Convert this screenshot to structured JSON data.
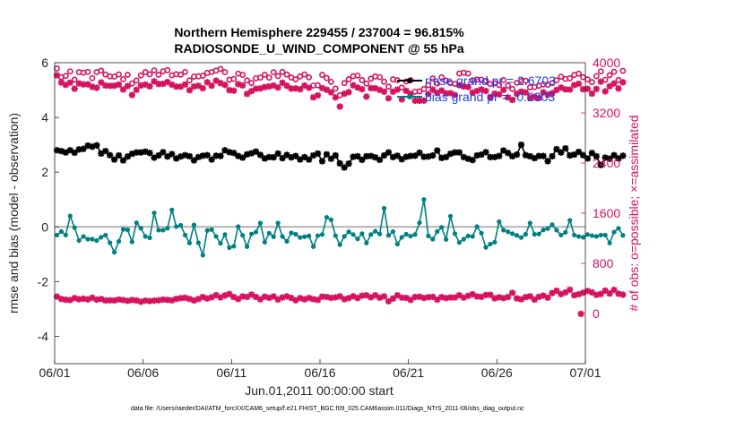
{
  "chart_data": {
    "type": "line",
    "title_line1": "Northern Hemisphere 229455 / 237004 = 96.815%",
    "title_line2": "RADIOSONDE_U_WIND_COMPONENT @ 55 hPa",
    "xlabel": "Jun.01,2011 00:00:00 start",
    "ylabel_left": "rmse and bias (model - observation)",
    "ylabel_right": "# of obs: o=possible; ×=assimilated",
    "x_ticklabels": [
      "06/01",
      "06/06",
      "06/11",
      "06/16",
      "06/21",
      "06/26",
      "07/01"
    ],
    "x_tick_days": [
      0,
      5,
      10,
      15,
      20,
      25,
      30
    ],
    "xlim_days": [
      0,
      30
    ],
    "ylim_left": [
      -5,
      6
    ],
    "yticks_left": [
      "-4",
      "-2",
      "0",
      "2",
      "4",
      "6"
    ],
    "ylim_right": [
      -800,
      4000
    ],
    "yticks_right": [
      "0",
      "800",
      "1600",
      "2400",
      "3200",
      "4000"
    ],
    "zero_line": true,
    "legend_placement": "top-right",
    "footnote": "data file: /Users/raeder/DAI/ATM_forcXX/CAM6_setup/f.e21.FHIST_BGC.f09_025.CAM6assim.011/Diags_NTrS_2011-06/obs_diag_output.nc",
    "colors": {
      "rmse": "#000000",
      "bias": "#008080",
      "counts": "#d6135e",
      "zero": "#b3b3b3",
      "legend_text": "#1a3df0"
    },
    "series": [
      {
        "name": "rmse grand pr = 2.6703",
        "axis": "left",
        "marker": "star",
        "values": [
          2.8,
          2.77,
          2.72,
          2.8,
          2.71,
          2.83,
          2.85,
          2.97,
          2.93,
          2.98,
          2.68,
          2.77,
          2.62,
          2.46,
          2.61,
          2.43,
          2.57,
          2.67,
          2.72,
          2.72,
          2.75,
          2.7,
          2.53,
          2.61,
          2.73,
          2.57,
          2.66,
          2.5,
          2.57,
          2.62,
          2.58,
          2.43,
          2.55,
          2.6,
          2.62,
          2.46,
          2.6,
          2.59,
          2.8,
          2.73,
          2.7,
          2.59,
          2.53,
          2.65,
          2.69,
          2.75,
          2.63,
          2.5,
          2.55,
          2.54,
          2.68,
          2.51,
          2.63,
          2.54,
          2.59,
          2.46,
          2.55,
          2.46,
          2.61,
          2.68,
          2.4,
          2.65,
          2.49,
          2.61,
          2.32,
          2.17,
          2.31,
          2.56,
          2.58,
          2.45,
          2.58,
          2.59,
          2.54,
          2.45,
          2.61,
          2.72,
          2.55,
          2.6,
          2.47,
          2.56,
          2.59,
          2.6,
          2.71,
          2.56,
          2.57,
          2.61,
          2.79,
          2.52,
          2.55,
          2.67,
          2.72,
          2.72,
          2.55,
          2.49,
          2.44,
          2.61,
          2.64,
          2.73,
          2.55,
          2.55,
          2.59,
          2.79,
          2.7,
          2.58,
          2.64,
          3.0,
          2.62,
          2.58,
          2.51,
          2.59,
          2.59,
          2.4,
          2.58,
          2.84,
          2.72,
          2.87,
          2.61,
          2.64,
          2.74,
          2.62,
          2.5,
          2.7,
          2.58,
          2.26,
          2.53,
          2.49,
          2.62,
          2.5,
          2.6
        ]
      },
      {
        "name": "bias grand pr = -0.2303",
        "axis": "left",
        "marker": "circle",
        "values": [
          -0.3,
          -0.17,
          -0.3,
          0.4,
          -0.03,
          -0.5,
          -0.35,
          -0.45,
          -0.45,
          -0.5,
          -0.38,
          -0.3,
          -0.58,
          -0.93,
          -0.53,
          -0.09,
          -0.11,
          -0.55,
          0.15,
          -0.05,
          -0.35,
          -0.4,
          0.51,
          -0.12,
          -0.12,
          -0.05,
          0.62,
          0.01,
          0.06,
          -0.3,
          -0.59,
          0.07,
          -0.58,
          -1.03,
          -0.13,
          -0.1,
          -0.35,
          -0.6,
          -0.28,
          -0.76,
          -0.71,
          0.01,
          -0.31,
          -0.72,
          -0.26,
          -0.19,
          0.14,
          -0.56,
          -0.23,
          -0.36,
          0.14,
          -0.35,
          -0.53,
          -0.22,
          -0.27,
          -0.39,
          -0.36,
          -0.33,
          -0.72,
          -0.32,
          -0.28,
          0.35,
          0.26,
          -0.32,
          -0.65,
          -0.35,
          -0.18,
          -0.28,
          -0.44,
          -0.25,
          -0.59,
          -0.28,
          -0.16,
          -0.26,
          0.68,
          -0.31,
          -0.17,
          -0.63,
          -0.38,
          -0.27,
          -0.34,
          -0.28,
          0.15,
          1.0,
          -0.33,
          -0.45,
          -0.17,
          -0.02,
          -0.46,
          0.39,
          -0.25,
          -0.57,
          -0.45,
          -0.33,
          -0.35,
          0.01,
          -0.23,
          -0.75,
          -0.63,
          -0.56,
          0.19,
          -0.12,
          -0.18,
          -0.25,
          -0.31,
          -0.39,
          -0.27,
          0.14,
          -0.27,
          -0.26,
          -0.11,
          -0.06,
          0.08,
          -0.12,
          -0.3,
          -0.2,
          0.24,
          -0.3,
          -0.35,
          -0.38,
          -0.28,
          -0.32,
          -0.35,
          -0.3,
          -0.3,
          -0.59,
          -0.19,
          -0.05,
          -0.31
        ]
      },
      {
        "name": "",
        "axis": "right",
        "marker": "circle-open",
        "values": [
          3908,
          3769,
          3790,
          3861,
          3730,
          3849,
          3841,
          3854,
          3754,
          3850,
          3873,
          3812,
          3782,
          3779,
          3813,
          3738,
          3807,
          3669,
          3716,
          3797,
          3850,
          3815,
          3877,
          3808,
          3863,
          3881,
          3800,
          3816,
          3810,
          3852,
          3717,
          3778,
          3783,
          3792,
          3837,
          3850,
          3874,
          3901,
          3849,
          3728,
          3741,
          3825,
          3805,
          3718,
          3676,
          3752,
          3763,
          3809,
          3762,
          3848,
          3787,
          3853,
          3812,
          3764,
          3735,
          3781,
          3813,
          3766,
          3636,
          3640,
          3806,
          3756,
          3695,
          3588,
          3481,
          3674,
          3735,
          3785,
          3795,
          3722,
          3668,
          3744,
          3781,
          3770,
          3697,
          3619,
          3735,
          3721,
          3603,
          3702,
          3721,
          3538,
          3542,
          3580,
          3642,
          3749,
          3668,
          3768,
          3715,
          3675,
          3663,
          3828,
          3840,
          3828,
          3719,
          3732,
          3729,
          3711,
          3661,
          3671,
          3644,
          3722,
          3635,
          3582,
          3680,
          3707,
          3712,
          3608,
          3611,
          3633,
          3654,
          3648,
          3673,
          3720,
          3777,
          3741,
          3752,
          3805,
          3825,
          3769,
          3734,
          3690,
          3786,
          3861,
          3727,
          3801,
          3855,
          3724,
          3870
        ]
      },
      {
        "name": "",
        "axis": "right",
        "marker": "asterisk",
        "values": [
          3799,
          3684,
          3646,
          3683,
          3585,
          3670,
          3654,
          3655,
          3615,
          3599,
          3685,
          3636,
          3631,
          3633,
          3651,
          3572,
          3628,
          3485,
          3568,
          3637,
          3652,
          3624,
          3703,
          3661,
          3663,
          3691,
          3650,
          3619,
          3618,
          3653,
          3561,
          3620,
          3632,
          3593,
          3689,
          3632,
          3713,
          3674,
          3646,
          3562,
          3554,
          3658,
          3638,
          3502,
          3546,
          3585,
          3589,
          3612,
          3622,
          3636,
          3605,
          3681,
          3632,
          3587,
          3589,
          3576,
          3635,
          3600,
          3447,
          3479,
          3595,
          3569,
          3528,
          3446,
          3300,
          3505,
          3530,
          3640,
          3604,
          3577,
          3459,
          3594,
          3592,
          3566,
          3538,
          3432,
          3538,
          3571,
          3415,
          3551,
          3503,
          3395,
          3394,
          3396,
          3501,
          3571,
          3519,
          3556,
          3510,
          3514,
          3485,
          3643,
          3620,
          3612,
          3523,
          3548,
          3573,
          3549,
          3450,
          3506,
          3494,
          3566,
          3446,
          3406,
          3506,
          3538,
          3526,
          3444,
          3453,
          3436,
          3528,
          3491,
          3513,
          3566,
          3602,
          3574,
          3572,
          3643,
          3664,
          3576,
          3583,
          3506,
          3581,
          3698,
          3543,
          3624,
          3669,
          3588,
          3687
        ]
      },
      {
        "name": "",
        "axis": "right",
        "marker": "asterisk",
        "values": [
          270,
          232,
          219,
          214,
          246,
          228,
          236,
          225,
          252,
          221,
          231,
          208,
          210,
          208,
          223,
          214,
          202,
          215,
          208,
          188,
          205,
          198,
          205,
          211,
          222,
          217,
          210,
          233,
          245,
          252,
          232,
          208,
          231,
          262,
          240,
          259,
          293,
          257,
          288,
          310,
          262,
          231,
          272,
          265,
          301,
          264,
          227,
          269,
          250,
          272,
          224,
          256,
          273,
          249,
          212,
          246,
          226,
          248,
          228,
          217,
          269,
          264,
          250,
          257,
          274,
          228,
          246,
          274,
          247,
          284,
          290,
          259,
          290,
          253,
          273,
          195,
          238,
          290,
          254,
          249,
          218,
          263,
          267,
          248,
          260,
          265,
          221,
          262,
          246,
          255,
          256,
          290,
          254,
          282,
          306,
          272,
          266,
          295,
          298,
          242,
          258,
          246,
          263,
          330,
          242,
          227,
          262,
          274,
          221,
          266,
          285,
          254,
          326,
          363,
          309,
          336,
          379,
          291,
          307,
          331,
          359,
          337,
          297,
          311,
          365,
          319,
          377,
          315,
          300
        ]
      },
      {
        "name": "",
        "axis": "right",
        "marker": "asterisk",
        "values": [
          -5
        ],
        "day_offsets": [
          29.75
        ]
      }
    ]
  }
}
